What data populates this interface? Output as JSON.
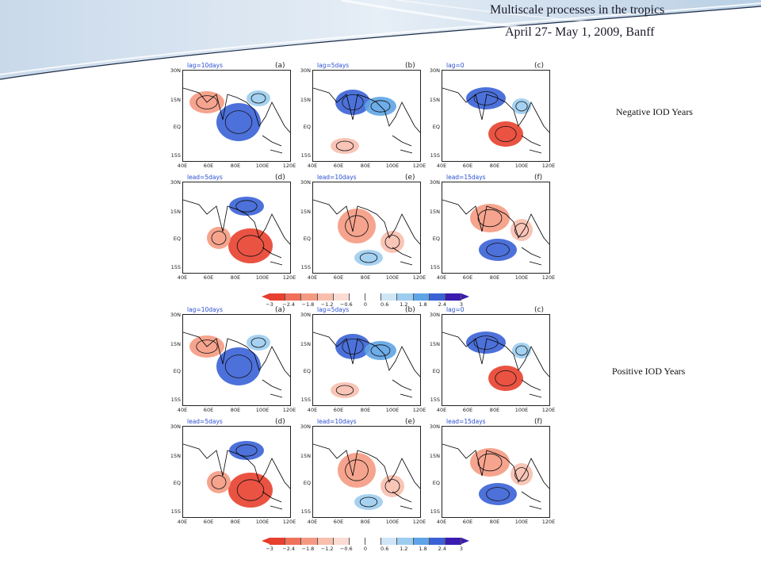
{
  "header": {
    "title_line1": "Multiscale processes in the tropics",
    "title_line2": "April 27- May 1, 2009, Banff"
  },
  "section_labels": {
    "negative": "Negative IOD Years",
    "positive": "Positive IOD Years"
  },
  "map_axes": {
    "y_ticks": [
      "30N",
      "15N",
      "EQ",
      "15S"
    ],
    "x_ticks": [
      "40E",
      "60E",
      "80E",
      "100E",
      "120E"
    ]
  },
  "colorbar": {
    "ticks": [
      "−3",
      "−2.4",
      "−1.8",
      "−1.2",
      "−0.6",
      "0",
      "0.6",
      "1.2",
      "1.8",
      "2.4",
      "3"
    ],
    "colors": [
      "#e8402e",
      "#f0705a",
      "#f59a82",
      "#f8bfae",
      "#fbdcd2",
      "#ffffff",
      "#ffffff",
      "#cfe6f7",
      "#9ccdf0",
      "#5ea4e6",
      "#3a62d6",
      "#3b1bb0"
    ]
  },
  "groups": [
    {
      "name": "negative",
      "panels": [
        {
          "lag_label": "lag=10days",
          "letter": "(a)"
        },
        {
          "lag_label": "lag=5days",
          "letter": "(b)"
        },
        {
          "lag_label": "lag=0",
          "letter": "(c)"
        },
        {
          "lag_label": "lead=5days",
          "letter": "(d)"
        },
        {
          "lag_label": "lead=10days",
          "letter": "(e)"
        },
        {
          "lag_label": "lead=15days",
          "letter": "(f)"
        }
      ]
    },
    {
      "name": "positive",
      "panels": [
        {
          "lag_label": "lag=10days",
          "letter": "(a)"
        },
        {
          "lag_label": "lag=5days",
          "letter": "(b)"
        },
        {
          "lag_label": "lag=0",
          "letter": "(c)"
        },
        {
          "lag_label": "lead=5days",
          "letter": "(d)"
        },
        {
          "lag_label": "lead=10days",
          "letter": "(e)"
        },
        {
          "lag_label": "lead=15days",
          "letter": "(f)"
        }
      ]
    }
  ]
}
